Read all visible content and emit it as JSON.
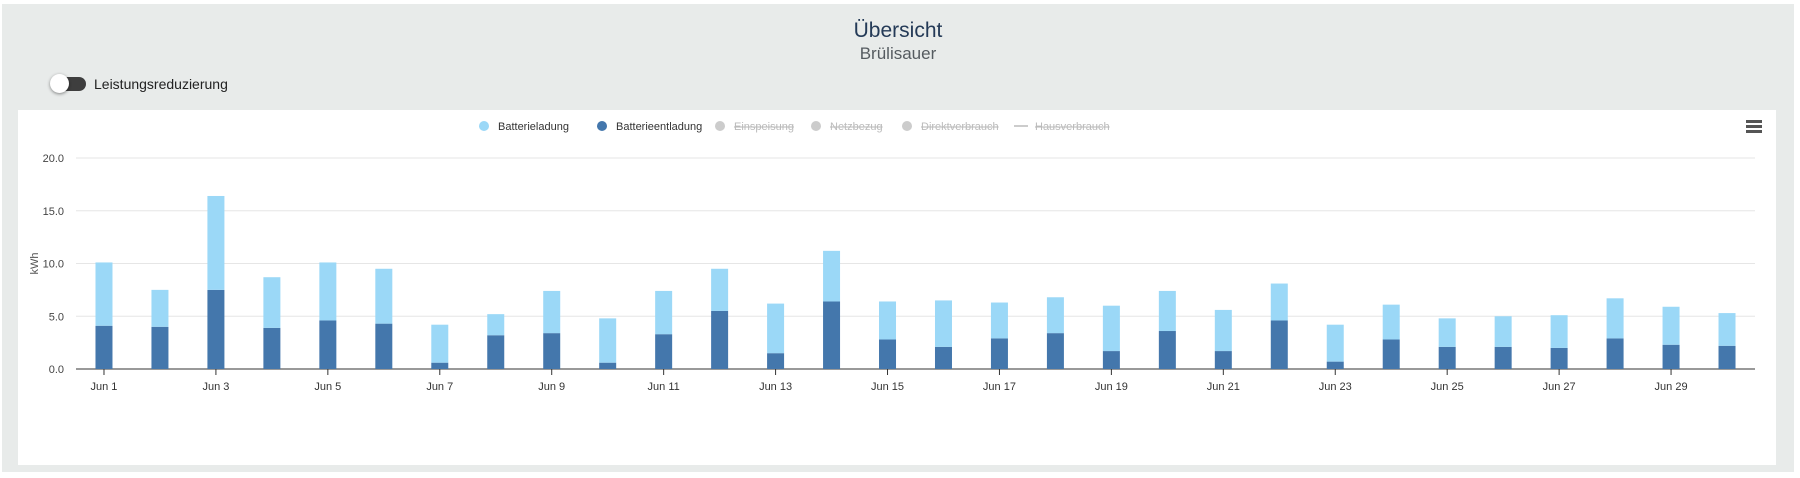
{
  "header": {
    "title": "Übersicht",
    "subtitle": "Brülisauer"
  },
  "toggle": {
    "label": "Leistungsreduzierung",
    "state": "off"
  },
  "menu": {
    "icon": "hamburger-menu-icon"
  },
  "chart_data": {
    "type": "bar",
    "stacked": true,
    "title": "",
    "xlabel": "",
    "ylabel": "kWh",
    "ylim": [
      0,
      20
    ],
    "yticks": [
      "0.0",
      "5.0",
      "10.0",
      "15.0",
      "20.0"
    ],
    "grid": true,
    "legend_position": "top-center",
    "categories": [
      "Jun 1",
      "Jun 2",
      "Jun 3",
      "Jun 4",
      "Jun 5",
      "Jun 6",
      "Jun 7",
      "Jun 8",
      "Jun 9",
      "Jun 10",
      "Jun 11",
      "Jun 12",
      "Jun 13",
      "Jun 14",
      "Jun 15",
      "Jun 16",
      "Jun 17",
      "Jun 18",
      "Jun 19",
      "Jun 20",
      "Jun 21",
      "Jun 22",
      "Jun 23",
      "Jun 24",
      "Jun 25",
      "Jun 26",
      "Jun 27",
      "Jun 28",
      "Jun 29",
      "Jun 30"
    ],
    "tick_labels": [
      "Jun 1",
      "Jun 3",
      "Jun 5",
      "Jun 7",
      "Jun 9",
      "Jun 11",
      "Jun 13",
      "Jun 15",
      "Jun 17",
      "Jun 19",
      "Jun 21",
      "Jun 23",
      "Jun 25",
      "Jun 27",
      "Jun 29"
    ],
    "legend": [
      {
        "name": "Batterieladung",
        "color": "#9bd8f7",
        "marker": "dot",
        "visible": true
      },
      {
        "name": "Batterieentladung",
        "color": "#4477ac",
        "marker": "dot",
        "visible": true
      },
      {
        "name": "Einspeisung",
        "color": "#cccccc",
        "marker": "dot",
        "visible": false
      },
      {
        "name": "Netzbezug",
        "color": "#cccccc",
        "marker": "dot",
        "visible": false
      },
      {
        "name": "Direktverbrauch",
        "color": "#cccccc",
        "marker": "dot",
        "visible": false
      },
      {
        "name": "Hausverbrauch",
        "color": "#cccccc",
        "marker": "line",
        "visible": false
      }
    ],
    "series": [
      {
        "name": "Batterieentladung",
        "color": "#4477ac",
        "values": [
          4.1,
          4.0,
          7.5,
          3.9,
          4.6,
          4.3,
          0.6,
          3.2,
          3.4,
          0.6,
          3.3,
          5.5,
          1.5,
          6.4,
          2.8,
          2.1,
          2.9,
          3.4,
          1.7,
          3.6,
          1.7,
          4.6,
          0.7,
          2.8,
          2.1,
          2.1,
          2.0,
          2.9,
          2.3,
          2.2
        ]
      },
      {
        "name": "Batterieladung",
        "color": "#9bd8f7",
        "values": [
          6.0,
          3.5,
          8.9,
          4.8,
          5.5,
          5.2,
          3.6,
          2.0,
          4.0,
          4.2,
          4.1,
          4.0,
          4.7,
          4.8,
          3.6,
          4.4,
          3.4,
          3.4,
          4.3,
          3.8,
          3.9,
          3.5,
          3.5,
          3.3,
          2.7,
          2.9,
          3.1,
          3.8,
          3.6,
          3.1
        ]
      }
    ]
  }
}
